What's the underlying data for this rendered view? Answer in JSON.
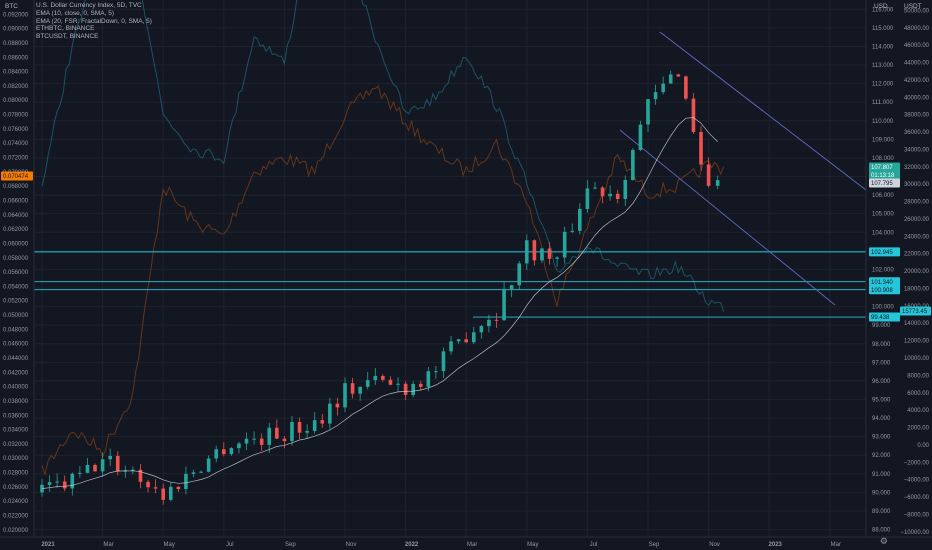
{
  "chart_data": {
    "type": "line",
    "legend": [
      "U.S. Dollar Currency Index, 5D, TVC",
      "EMA (10, close, 0, SMA, 5)",
      "EMA (20, FSR: FractalDown, 0, SMA, 5)",
      "ETHBTC, BINANCE",
      "BTCUSDT, BINANCE"
    ],
    "scale_labels": {
      "left": "BTC",
      "mid": "USD",
      "right": "USDT"
    },
    "x_ticks": [
      "2021",
      "Mar",
      "May",
      "Jul",
      "Sep",
      "Nov",
      "2022",
      "Mar",
      "May",
      "Jul",
      "Sep",
      "Nov",
      "2023",
      "Mar"
    ],
    "left_axis": {
      "ticks": [
        "0.092000",
        "0.090000",
        "0.088000",
        "0.086000",
        "0.084000",
        "0.082000",
        "0.080000",
        "0.078000",
        "0.076000",
        "0.074000",
        "0.072000",
        "0.070000",
        "0.068000",
        "0.066000",
        "0.064000",
        "0.062000",
        "0.060000",
        "0.058000",
        "0.056000",
        "0.054000",
        "0.052000",
        "0.050000",
        "0.048000",
        "0.046000",
        "0.044000",
        "0.042000",
        "0.040000",
        "0.038000",
        "0.036000",
        "0.034000",
        "0.032000",
        "0.030000",
        "0.028000",
        "0.026000",
        "0.024000",
        "0.022000",
        "0.020000"
      ],
      "ylim": [
        0.019,
        0.094
      ],
      "last_tag": "0.070474"
    },
    "usd_axis": {
      "ticks": [
        "116.000",
        "115.000",
        "114.000",
        "113.000",
        "112.000",
        "111.000",
        "110.000",
        "109.000",
        "108.000",
        "107.000",
        "106.000",
        "105.000",
        "104.000",
        "103.000",
        "102.000",
        "101.000",
        "100.000",
        "99.000",
        "98.000",
        "97.000",
        "96.000",
        "95.000",
        "94.000",
        "93.000",
        "92.000",
        "91.000",
        "90.000",
        "89.000",
        "88.000"
      ],
      "ylim": [
        87.6,
        116.5
      ],
      "tags": [
        "107.807",
        "01:13:18",
        "107.795",
        "102.945",
        "101.340",
        "100.908",
        "99.438"
      ]
    },
    "usdt_axis": {
      "ticks": [
        "50000.00",
        "48000.00",
        "46000.00",
        "44000.00",
        "42000.00",
        "40000.00",
        "38000.00",
        "36000.00",
        "34000.00",
        "32000.00",
        "30000.00",
        "28000.00",
        "26000.00",
        "24000.00",
        "22000.00",
        "20000.00",
        "18000.00",
        "16000.00",
        "14000.00",
        "12000.00",
        "10000.00",
        "8000.00",
        "6000.00",
        "4000.00",
        "2000.00",
        "0.00",
        "−2000.00",
        "−4000.00",
        "−6000.00",
        "−8000.00",
        "−10000.00"
      ],
      "ylim": [
        -10600,
        51200
      ],
      "last_tag": "15773.45"
    },
    "horizontal_levels": [
      102.945,
      101.34,
      100.908,
      99.438
    ],
    "dxy_path": [
      [
        "2021-01",
        90.0
      ],
      [
        "2021-02",
        90.6
      ],
      [
        "2021-03",
        91.7
      ],
      [
        "2021-04",
        91.2
      ],
      [
        "2021-05",
        89.8
      ],
      [
        "2021-06",
        91.2
      ],
      [
        "2021-07",
        92.5
      ],
      [
        "2021-08",
        92.9
      ],
      [
        "2021-09",
        93.2
      ],
      [
        "2021-10",
        93.8
      ],
      [
        "2021-11",
        95.5
      ],
      [
        "2021-12",
        96.0
      ],
      [
        "2022-01",
        95.7
      ],
      [
        "2022-02",
        96.6
      ],
      [
        "2022-03",
        98.6
      ],
      [
        "2022-04",
        99.8
      ],
      [
        "2022-05",
        103.2
      ],
      [
        "2022-06",
        102.5
      ],
      [
        "2022-07",
        106.4
      ],
      [
        "2022-08",
        106.2
      ],
      [
        "2022-09",
        110.8
      ],
      [
        "2022-10",
        112.8
      ],
      [
        "2022-11",
        106.3
      ],
      [
        "2022-11b",
        107.8
      ]
    ],
    "ethbtc_path": [
      [
        "2021-01",
        0.028
      ],
      [
        "2021-02",
        0.034
      ],
      [
        "2021-03",
        0.031
      ],
      [
        "2021-04",
        0.039
      ],
      [
        "2021-05",
        0.068
      ],
      [
        "2021-06",
        0.063
      ],
      [
        "2021-07",
        0.061
      ],
      [
        "2021-08",
        0.07
      ],
      [
        "2021-09",
        0.072
      ],
      [
        "2021-10",
        0.07
      ],
      [
        "2021-11",
        0.078
      ],
      [
        "2021-12",
        0.082
      ],
      [
        "2022-01",
        0.077
      ],
      [
        "2022-02",
        0.073
      ],
      [
        "2022-03",
        0.07
      ],
      [
        "2022-04",
        0.074
      ],
      [
        "2022-05",
        0.066
      ],
      [
        "2022-06",
        0.052
      ],
      [
        "2022-07",
        0.062
      ],
      [
        "2022-08",
        0.072
      ],
      [
        "2022-09",
        0.067
      ],
      [
        "2022-10",
        0.068
      ],
      [
        "2022-11",
        0.071
      ],
      [
        "2022-11b",
        0.0705
      ]
    ],
    "btcusdt_path": [
      [
        "2021-01",
        30000
      ],
      [
        "2021-02",
        46000
      ],
      [
        "2021-03",
        57000
      ],
      [
        "2021-04",
        58000
      ],
      [
        "2021-05",
        38000
      ],
      [
        "2021-06",
        34000
      ],
      [
        "2021-07",
        33000
      ],
      [
        "2021-08",
        47000
      ],
      [
        "2021-09",
        44000
      ],
      [
        "2021-10",
        61000
      ],
      [
        "2021-11",
        57000
      ],
      [
        "2021-12",
        47000
      ],
      [
        "2022-01",
        38000
      ],
      [
        "2022-02",
        40000
      ],
      [
        "2022-03",
        45000
      ],
      [
        "2022-04",
        39000
      ],
      [
        "2022-05",
        30000
      ],
      [
        "2022-06",
        20000
      ],
      [
        "2022-07",
        23000
      ],
      [
        "2022-08",
        20500
      ],
      [
        "2022-09",
        19500
      ],
      [
        "2022-10",
        20500
      ],
      [
        "2022-11",
        16500
      ],
      [
        "2022-11b",
        15773
      ]
    ]
  },
  "colors": {
    "background": "#131722",
    "candle_up": "#26a69a",
    "candle_down": "#ef5350",
    "ema": "#d1d4dc",
    "ethbtc": "#ff6d00",
    "btcusdt": "#26c6da",
    "level": "#26c6da",
    "channel": "#5c6bc0"
  },
  "icons": [
    "gear-icon"
  ]
}
